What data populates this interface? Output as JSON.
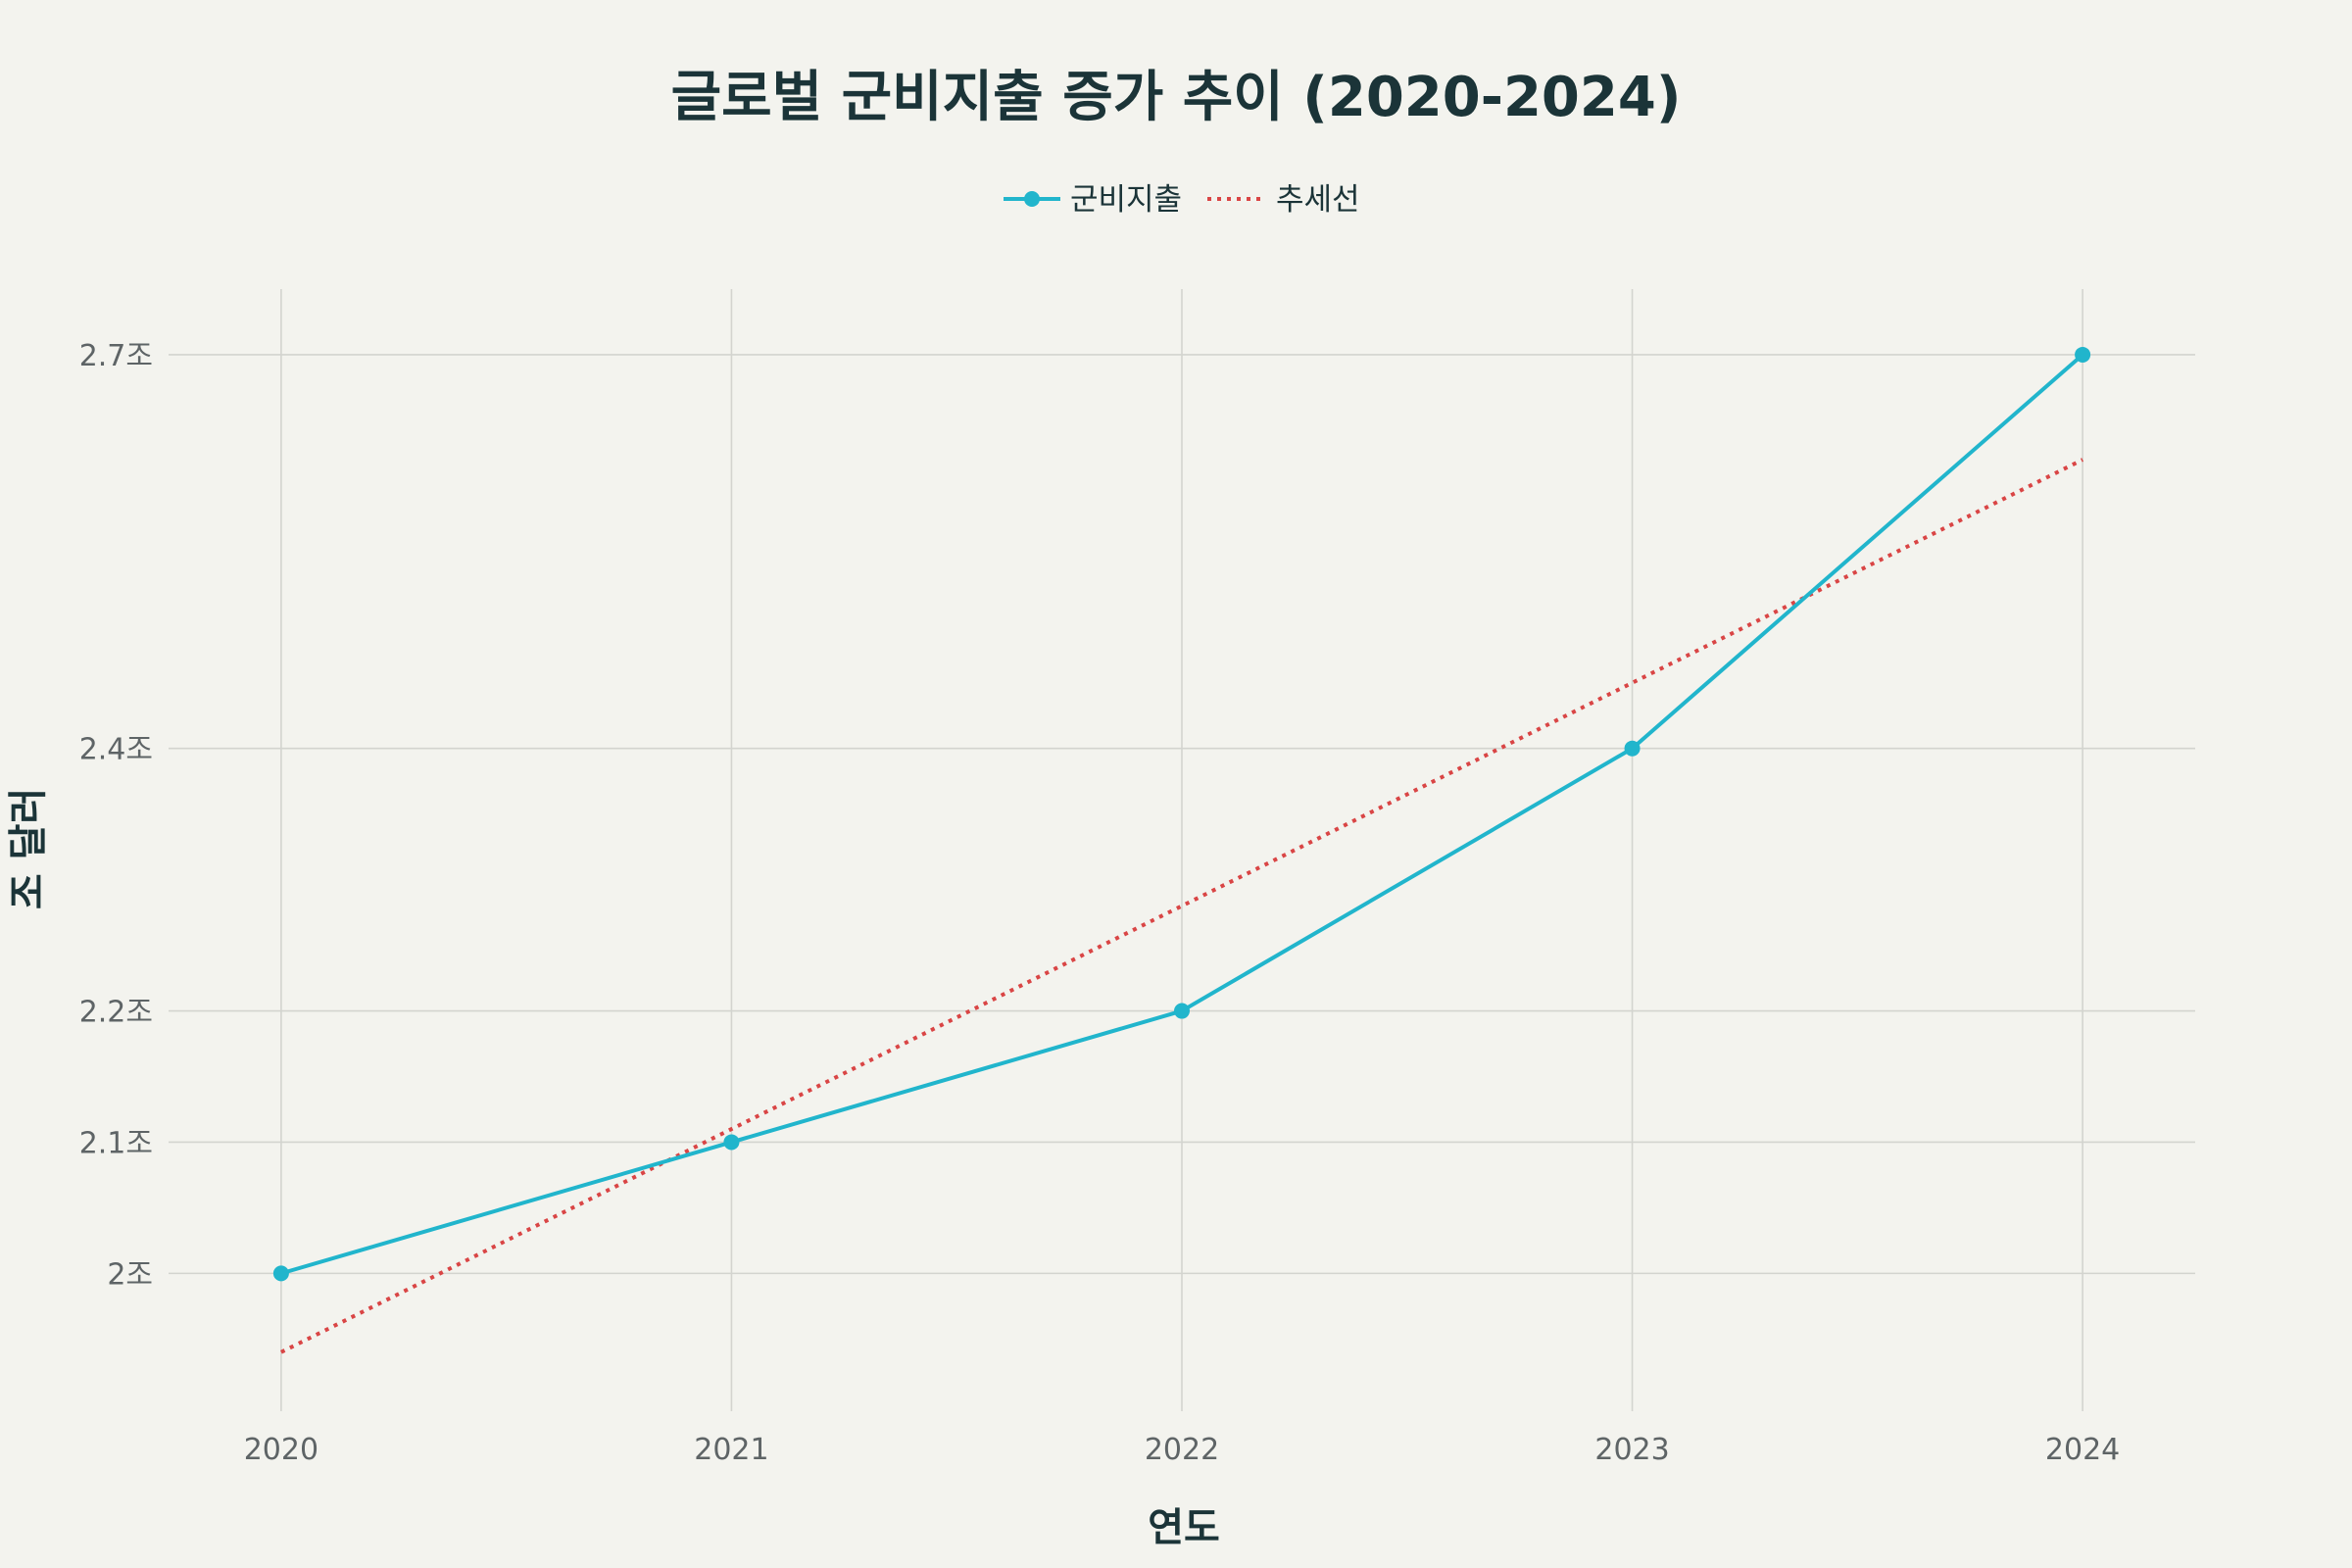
{
  "chart_data": {
    "type": "line",
    "title": "글로벌 군비지출 증가 추이 (2020-2024)",
    "xlabel": "연도",
    "ylabel": "조 달러",
    "x": [
      2020,
      2021,
      2022,
      2023,
      2024
    ],
    "x_tick_labels": [
      "2020",
      "2021",
      "2022",
      "2023",
      "2024"
    ],
    "y_ticks": [
      2.0,
      2.1,
      2.2,
      2.4,
      2.7
    ],
    "y_tick_labels": [
      "2조",
      "2.1조",
      "2.2조",
      "2.4조",
      "2.7조"
    ],
    "xlim": [
      2019.75,
      2024.25
    ],
    "ylim": [
      1.895,
      2.75
    ],
    "grid": true,
    "legend_position": "top-center",
    "series": [
      {
        "name": "군비지출",
        "style": "line+markers",
        "color": "#21b5cc",
        "values": [
          2.0,
          2.1,
          2.2,
          2.4,
          2.7
        ]
      },
      {
        "name": "추세선",
        "style": "dotted",
        "color": "#d94545",
        "values": [
          1.94,
          2.11,
          2.28,
          2.45,
          2.62
        ]
      }
    ]
  }
}
